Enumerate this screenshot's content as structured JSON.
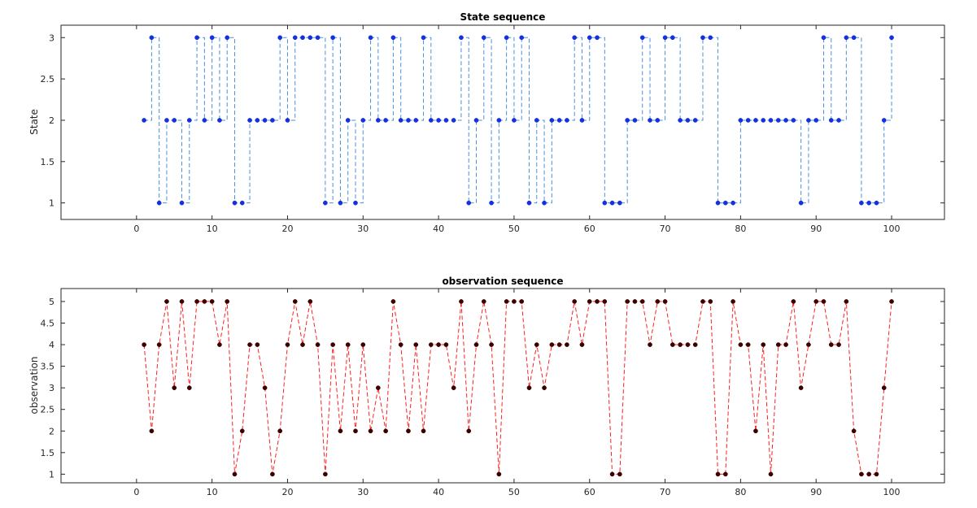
{
  "chart_data": [
    {
      "type": "line",
      "style": "stairs-with-markers",
      "title": "State sequence",
      "xlabel": "",
      "ylabel": "State",
      "xlim": [
        -10,
        107
      ],
      "ylim": [
        0.8,
        3.15
      ],
      "xticks": [
        0,
        10,
        20,
        30,
        40,
        50,
        60,
        70,
        80,
        90,
        100
      ],
      "yticks": [
        1,
        1.5,
        2,
        2.5,
        3
      ],
      "ytick_labels": [
        "1",
        "1.5",
        "2",
        "2.5",
        "3"
      ],
      "line_color": "#4a90d9",
      "marker_color": "#1530e0",
      "line_dash": "dashed",
      "series": [
        {
          "x": [
            1,
            2,
            3,
            4,
            5,
            6,
            7,
            8,
            9,
            10,
            11,
            12,
            13,
            14,
            15,
            16,
            17,
            18,
            19,
            20,
            21,
            22,
            23,
            24,
            25,
            26,
            27,
            28,
            29,
            30,
            31,
            32,
            33,
            34,
            35,
            36,
            37,
            38,
            39,
            40,
            41,
            42,
            43,
            44,
            45,
            46,
            47,
            48,
            49,
            50,
            51,
            52,
            53,
            54,
            55,
            56,
            57,
            58,
            59,
            60,
            61,
            62,
            63,
            64,
            65,
            66,
            67,
            68,
            69,
            70,
            71,
            72,
            73,
            74,
            75,
            76,
            77,
            78,
            79,
            80,
            81,
            82,
            83,
            84,
            85,
            86,
            87,
            88,
            89,
            90,
            91,
            92,
            93,
            94,
            95,
            96,
            97,
            98,
            99,
            100
          ],
          "values": [
            2,
            3,
            1,
            2,
            2,
            1,
            2,
            3,
            2,
            3,
            2,
            3,
            1,
            1,
            2,
            2,
            2,
            2,
            3,
            2,
            3,
            3,
            3,
            3,
            1,
            3,
            1,
            2,
            1,
            2,
            3,
            2,
            2,
            3,
            2,
            2,
            2,
            3,
            2,
            2,
            2,
            2,
            3,
            1,
            2,
            3,
            1,
            2,
            3,
            2,
            3,
            1,
            2,
            1,
            2,
            2,
            2,
            3,
            2,
            3,
            3,
            1,
            1,
            1,
            2,
            2,
            3,
            2,
            2,
            3,
            3,
            2,
            2,
            2,
            3,
            3,
            1,
            1,
            1,
            2,
            2,
            2,
            2,
            2,
            2,
            2,
            2,
            1,
            2,
            2,
            3,
            2,
            2,
            3,
            3,
            1,
            1,
            1,
            2,
            3
          ]
        }
      ]
    },
    {
      "type": "line",
      "title": "observation sequence",
      "xlabel": "",
      "ylabel": "observation",
      "xlim": [
        -10,
        107
      ],
      "ylim": [
        0.8,
        5.3
      ],
      "xticks": [
        0,
        10,
        20,
        30,
        40,
        50,
        60,
        70,
        80,
        90,
        100
      ],
      "yticks": [
        1,
        1.5,
        2,
        2.5,
        3,
        3.5,
        4,
        4.5,
        5
      ],
      "ytick_labels": [
        "1",
        "1.5",
        "2",
        "2.5",
        "3",
        "3.5",
        "4",
        "4.5",
        "5"
      ],
      "line_color": "#ff2020",
      "marker_color": "#3a0000",
      "line_dash": "dashed",
      "series": [
        {
          "x": [
            1,
            2,
            3,
            4,
            5,
            6,
            7,
            8,
            9,
            10,
            11,
            12,
            13,
            14,
            15,
            16,
            17,
            18,
            19,
            20,
            21,
            22,
            23,
            24,
            25,
            26,
            27,
            28,
            29,
            30,
            31,
            32,
            33,
            34,
            35,
            36,
            37,
            38,
            39,
            40,
            41,
            42,
            43,
            44,
            45,
            46,
            47,
            48,
            49,
            50,
            51,
            52,
            53,
            54,
            55,
            56,
            57,
            58,
            59,
            60,
            61,
            62,
            63,
            64,
            65,
            66,
            67,
            68,
            69,
            70,
            71,
            72,
            73,
            74,
            75,
            76,
            77,
            78,
            79,
            80,
            81,
            82,
            83,
            84,
            85,
            86,
            87,
            88,
            89,
            90,
            91,
            92,
            93,
            94,
            95,
            96,
            97,
            98,
            99,
            100
          ],
          "values": [
            4,
            2,
            4,
            5,
            3,
            5,
            3,
            5,
            5,
            5,
            4,
            5,
            1,
            2,
            4,
            4,
            3,
            1,
            2,
            4,
            5,
            4,
            5,
            4,
            1,
            4,
            2,
            4,
            2,
            4,
            2,
            3,
            2,
            5,
            4,
            2,
            4,
            2,
            4,
            4,
            4,
            3,
            5,
            2,
            4,
            5,
            4,
            1,
            5,
            5,
            5,
            3,
            4,
            3,
            4,
            4,
            4,
            5,
            4,
            5,
            5,
            5,
            1,
            1,
            5,
            5,
            5,
            4,
            5,
            5,
            4,
            4,
            4,
            4,
            5,
            5,
            1,
            1,
            5,
            4,
            4,
            2,
            4,
            1,
            4,
            4,
            5,
            3,
            4,
            5,
            5,
            4,
            4,
            5,
            2,
            1,
            1,
            1,
            3,
            5
          ]
        }
      ]
    }
  ]
}
